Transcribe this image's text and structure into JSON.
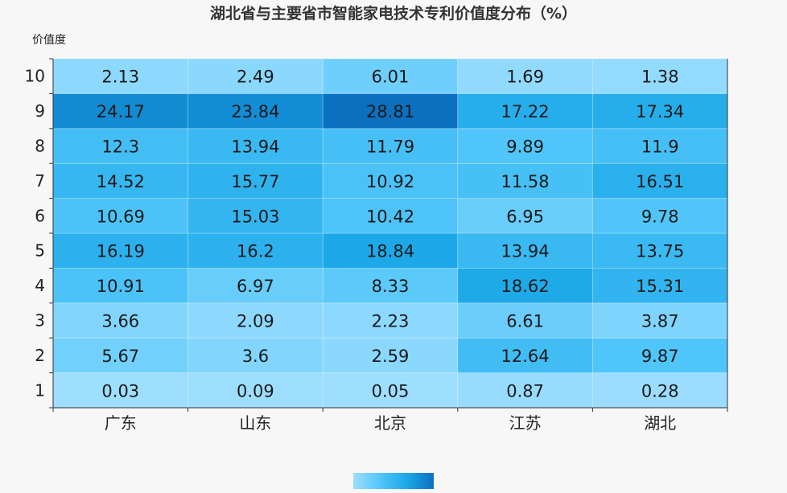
{
  "chart_data": {
    "type": "heatmap",
    "title": "湖北省与主要省市智能家电技术专利价值度分布（%）",
    "ylabel": "价值度",
    "x_categories": [
      "广东",
      "山东",
      "北京",
      "江苏",
      "湖北"
    ],
    "y_categories": [
      "1",
      "2",
      "3",
      "4",
      "5",
      "6",
      "7",
      "8",
      "9",
      "10"
    ],
    "values": [
      [
        0.03,
        0.09,
        0.05,
        0.87,
        0.28
      ],
      [
        5.67,
        3.6,
        2.59,
        12.64,
        9.87
      ],
      [
        3.66,
        2.09,
        2.23,
        6.61,
        3.87
      ],
      [
        10.91,
        6.97,
        8.33,
        18.62,
        15.31
      ],
      [
        16.19,
        16.2,
        18.84,
        13.94,
        13.75
      ],
      [
        10.69,
        15.03,
        10.42,
        6.95,
        9.78
      ],
      [
        14.52,
        15.77,
        10.92,
        11.58,
        16.51
      ],
      [
        12.3,
        13.94,
        11.79,
        9.89,
        11.9
      ],
      [
        24.17,
        23.84,
        28.81,
        17.22,
        17.34
      ],
      [
        2.13,
        2.49,
        6.01,
        1.69,
        1.38
      ]
    ],
    "value_range": [
      0,
      28.81
    ],
    "color_scale": [
      "#9edeff",
      "#52c6fa",
      "#1ba8e8",
      "#0b70c0"
    ],
    "visual_map": "bottom-center"
  }
}
